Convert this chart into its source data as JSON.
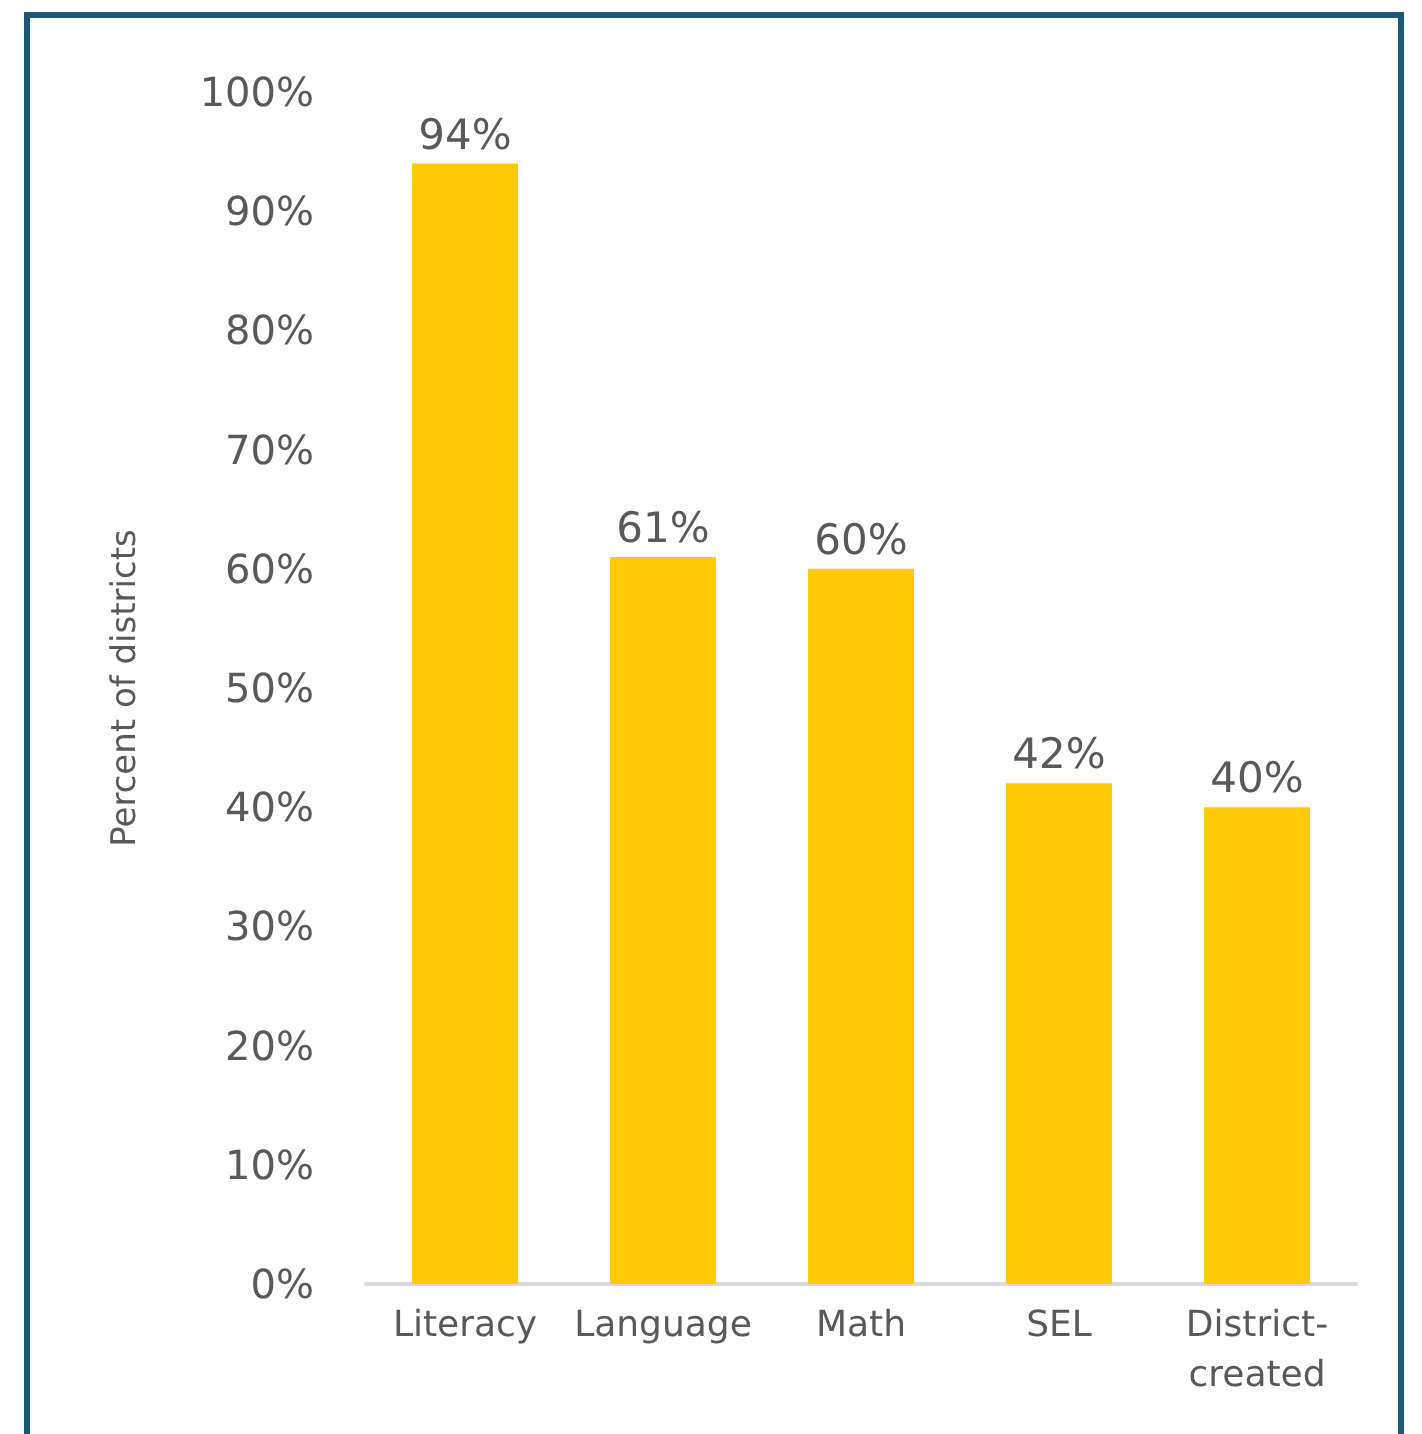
{
  "chart_data": {
    "type": "bar",
    "ylabel": "Percent of districts",
    "categories": [
      "Literacy",
      "Language",
      "Math",
      "SEL",
      "District-created"
    ],
    "values": [
      94,
      61,
      60,
      42,
      40
    ],
    "value_labels": [
      "94%",
      "61%",
      "60%",
      "42%",
      "40%"
    ],
    "color": "#ffc907",
    "ylim": [
      0,
      100
    ],
    "yticks": [
      {
        "value": 0,
        "label": "0%"
      },
      {
        "value": 10,
        "label": "10%"
      },
      {
        "value": 20,
        "label": "20%"
      },
      {
        "value": 30,
        "label": "30%"
      },
      {
        "value": 40,
        "label": "40%"
      },
      {
        "value": 50,
        "label": "50%"
      },
      {
        "value": 60,
        "label": "60%"
      },
      {
        "value": 70,
        "label": "70%"
      },
      {
        "value": 80,
        "label": "80%"
      },
      {
        "value": 90,
        "label": "90%"
      },
      {
        "value": 100,
        "label": "100%"
      }
    ]
  }
}
